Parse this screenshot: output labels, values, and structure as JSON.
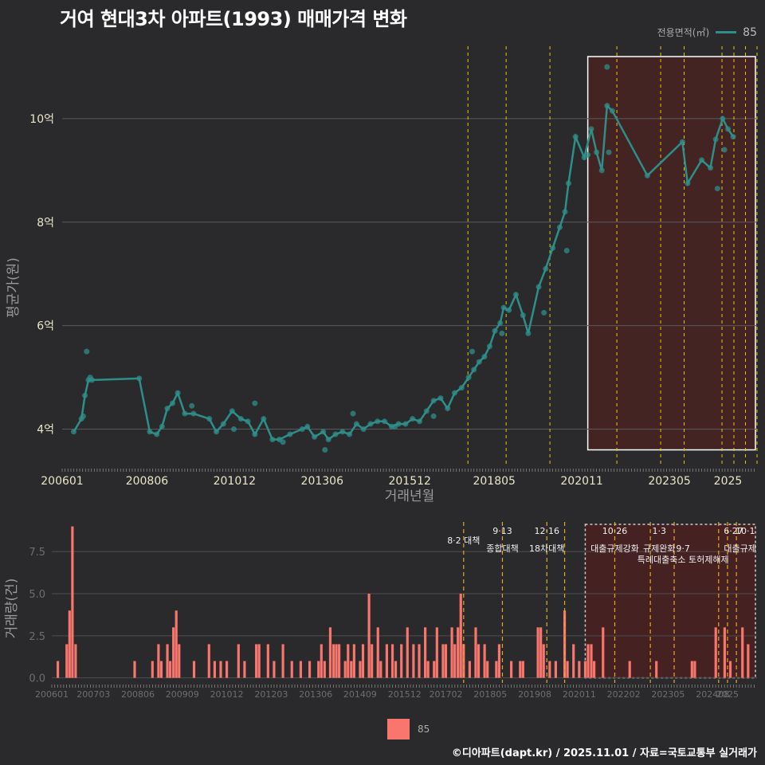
{
  "title": "거여 현대3차 아파트(1993) 매매가격 변화",
  "legend": {
    "title": "전용면적(㎡)",
    "series_label": "85"
  },
  "bottom_legend": {
    "label": "85"
  },
  "credit": "©디아파트(dapt.kr) / 2025.11.01 / 자료=국토교통부 실거래가",
  "colors": {
    "line": "#2e8f8a",
    "bar": "#f8766d",
    "highlight": "#5a1d1d",
    "policy": "#e6c619",
    "policy_bar": "#e8a81e"
  },
  "chart_data": [
    {
      "type": "line",
      "title": "거여 현대3차 아파트(1993) 매매가격 변화",
      "xlabel": "거래년월",
      "ylabel": "평균가(원)",
      "xlim": [
        2006.0,
        2025.83
      ],
      "ylim": [
        3.3,
        11.4
      ],
      "x_ticks": [
        {
          "x": 2006.0,
          "label": "200601"
        },
        {
          "x": 2008.42,
          "label": "200806"
        },
        {
          "x": 2010.92,
          "label": "201012"
        },
        {
          "x": 2013.42,
          "label": "201306"
        },
        {
          "x": 2015.92,
          "label": "201512"
        },
        {
          "x": 2018.33,
          "label": "201805"
        },
        {
          "x": 2020.83,
          "label": "202011"
        },
        {
          "x": 2023.33,
          "label": "202305"
        },
        {
          "x": 2025.0,
          "label": "2025"
        }
      ],
      "y_ticks": [
        {
          "y": 4,
          "label": "4억"
        },
        {
          "y": 6,
          "label": "6억"
        },
        {
          "y": 8,
          "label": "8억"
        },
        {
          "y": 10,
          "label": "10억"
        }
      ],
      "highlight_range": [
        2021.0,
        2025.83
      ],
      "policy_lines": [
        2017.58,
        2018.67,
        2019.92,
        2021.83,
        2023.08,
        2023.75,
        2024.83,
        2025.17,
        2025.5,
        2025.83
      ],
      "series": [
        {
          "name": "85",
          "points": [
            [
              2006.33,
              3.95
            ],
            [
              2006.55,
              4.2
            ],
            [
              2006.65,
              4.65
            ],
            [
              2006.75,
              4.95
            ],
            [
              2006.85,
              4.95
            ],
            [
              2008.2,
              4.98
            ],
            [
              2008.5,
              3.95
            ],
            [
              2008.7,
              3.9
            ],
            [
              2008.85,
              4.05
            ],
            [
              2009.0,
              4.4
            ],
            [
              2009.15,
              4.5
            ],
            [
              2009.3,
              4.7
            ],
            [
              2009.5,
              4.3
            ],
            [
              2009.75,
              4.3
            ],
            [
              2010.2,
              4.2
            ],
            [
              2010.4,
              3.95
            ],
            [
              2010.6,
              4.1
            ],
            [
              2010.85,
              4.35
            ],
            [
              2011.1,
              4.2
            ],
            [
              2011.3,
              4.15
            ],
            [
              2011.5,
              3.9
            ],
            [
              2011.75,
              4.2
            ],
            [
              2012.0,
              3.8
            ],
            [
              2012.2,
              3.8
            ],
            [
              2012.5,
              3.9
            ],
            [
              2012.85,
              4.0
            ],
            [
              2013.0,
              4.05
            ],
            [
              2013.2,
              3.85
            ],
            [
              2013.45,
              3.95
            ],
            [
              2013.6,
              3.8
            ],
            [
              2013.8,
              3.9
            ],
            [
              2014.0,
              3.95
            ],
            [
              2014.2,
              3.9
            ],
            [
              2014.4,
              4.1
            ],
            [
              2014.6,
              4.0
            ],
            [
              2014.8,
              4.1
            ],
            [
              2015.0,
              4.15
            ],
            [
              2015.2,
              4.15
            ],
            [
              2015.4,
              4.05
            ],
            [
              2015.6,
              4.1
            ],
            [
              2015.8,
              4.1
            ],
            [
              2016.0,
              4.2
            ],
            [
              2016.2,
              4.15
            ],
            [
              2016.4,
              4.35
            ],
            [
              2016.6,
              4.55
            ],
            [
              2016.8,
              4.6
            ],
            [
              2017.0,
              4.4
            ],
            [
              2017.2,
              4.7
            ],
            [
              2017.4,
              4.8
            ],
            [
              2017.6,
              5.0
            ],
            [
              2017.75,
              5.15
            ],
            [
              2017.9,
              5.3
            ],
            [
              2018.05,
              5.4
            ],
            [
              2018.2,
              5.6
            ],
            [
              2018.35,
              5.9
            ],
            [
              2018.5,
              6.05
            ],
            [
              2018.6,
              6.35
            ],
            [
              2018.75,
              6.3
            ],
            [
              2018.95,
              6.6
            ],
            [
              2019.15,
              6.2
            ],
            [
              2019.3,
              5.85
            ],
            [
              2019.6,
              6.75
            ],
            [
              2019.8,
              7.1
            ],
            [
              2020.0,
              7.5
            ],
            [
              2020.2,
              7.9
            ],
            [
              2020.35,
              8.2
            ],
            [
              2020.45,
              8.75
            ],
            [
              2020.65,
              9.65
            ],
            [
              2020.9,
              9.25
            ],
            [
              2021.1,
              9.8
            ],
            [
              2021.25,
              9.35
            ],
            [
              2021.4,
              9.0
            ],
            [
              2021.55,
              10.25
            ],
            [
              2021.7,
              10.15
            ],
            [
              2022.7,
              8.9
            ],
            [
              2023.7,
              9.55
            ],
            [
              2023.85,
              8.75
            ],
            [
              2024.25,
              9.2
            ],
            [
              2024.5,
              9.05
            ],
            [
              2024.65,
              9.6
            ],
            [
              2024.85,
              10.0
            ],
            [
              2025.0,
              9.8
            ],
            [
              2025.15,
              9.65
            ]
          ],
          "scatter": [
            [
              2006.7,
              5.5
            ],
            [
              2006.6,
              4.25
            ],
            [
              2006.8,
              5.0
            ],
            [
              2009.7,
              4.45
            ],
            [
              2010.9,
              4.0
            ],
            [
              2011.5,
              4.5
            ],
            [
              2012.3,
              3.75
            ],
            [
              2013.5,
              3.6
            ],
            [
              2014.3,
              4.3
            ],
            [
              2015.5,
              4.05
            ],
            [
              2016.6,
              4.25
            ],
            [
              2017.7,
              5.5
            ],
            [
              2018.55,
              5.85
            ],
            [
              2019.75,
              6.25
            ],
            [
              2020.4,
              7.45
            ],
            [
              2021.55,
              11.0
            ],
            [
              2021.6,
              9.35
            ],
            [
              2021.0,
              9.3
            ],
            [
              2024.7,
              8.65
            ],
            [
              2024.9,
              9.4
            ]
          ]
        }
      ]
    },
    {
      "type": "bar",
      "ylabel": "거래량(건)",
      "xlim": [
        2006.0,
        2025.83
      ],
      "ylim": [
        -0.3,
        9.5
      ],
      "y_ticks": [
        {
          "y": 0.0,
          "label": "0.0"
        },
        {
          "y": 2.5,
          "label": "2.5"
        },
        {
          "y": 5.0,
          "label": "5.0"
        },
        {
          "y": 7.5,
          "label": "7.5"
        }
      ],
      "x_ticks": [
        {
          "x": 2006.0,
          "label": "200601"
        },
        {
          "x": 2007.17,
          "label": "200703"
        },
        {
          "x": 2008.42,
          "label": "200806"
        },
        {
          "x": 2009.67,
          "label": "200909"
        },
        {
          "x": 2010.92,
          "label": "201012"
        },
        {
          "x": 2012.17,
          "label": "201203"
        },
        {
          "x": 2013.42,
          "label": "201306"
        },
        {
          "x": 2014.67,
          "label": "201409"
        },
        {
          "x": 2015.92,
          "label": "201512"
        },
        {
          "x": 2017.08,
          "label": "201702"
        },
        {
          "x": 2018.33,
          "label": "201805"
        },
        {
          "x": 2019.58,
          "label": "201908"
        },
        {
          "x": 2020.83,
          "label": "202011"
        },
        {
          "x": 2022.08,
          "label": "202202"
        },
        {
          "x": 2023.33,
          "label": "202305"
        },
        {
          "x": 2024.58,
          "label": "202408"
        },
        {
          "x": 2025.0,
          "label": "2025"
        }
      ],
      "highlight_range": [
        2021.0,
        2025.83
      ],
      "policy_lines": [
        2017.58,
        2018.67,
        2019.92,
        2020.42,
        2021.83,
        2022.83,
        2023.5,
        2024.75,
        2025.0,
        2025.25
      ],
      "policy_labels": [
        {
          "x": 2017.58,
          "row": 1,
          "text": "8·2 대책"
        },
        {
          "x": 2018.67,
          "row": 0,
          "text": "9·13"
        },
        {
          "x": 2018.67,
          "row": 2,
          "text": "종합대책"
        },
        {
          "x": 2019.92,
          "row": 0,
          "text": "12·16"
        },
        {
          "x": 2019.92,
          "row": 2,
          "text": "18차대책"
        },
        {
          "x": 2021.83,
          "row": 0,
          "text": "10·26"
        },
        {
          "x": 2021.83,
          "row": 2,
          "text": "대출규제강화"
        },
        {
          "x": 2023.08,
          "row": 0,
          "text": "1·3"
        },
        {
          "x": 2023.08,
          "row": 2,
          "text": "규제완화"
        },
        {
          "x": 2023.75,
          "row": 2,
          "text": "9·7"
        },
        {
          "x": 2023.75,
          "row": 3,
          "text": "특례대출축소 토허제해제"
        },
        {
          "x": 2025.17,
          "row": 0,
          "text": "6·27"
        },
        {
          "x": 2025.5,
          "row": 0,
          "text": "10·1"
        },
        {
          "x": 2025.35,
          "row": 2,
          "text": "대출규제"
        }
      ],
      "bars": [
        [
          2006.17,
          1
        ],
        [
          2006.42,
          2
        ],
        [
          2006.5,
          4
        ],
        [
          2006.58,
          9
        ],
        [
          2006.67,
          2
        ],
        [
          2008.33,
          1
        ],
        [
          2008.83,
          1
        ],
        [
          2009.0,
          2
        ],
        [
          2009.08,
          1
        ],
        [
          2009.25,
          2
        ],
        [
          2009.33,
          1
        ],
        [
          2009.42,
          3
        ],
        [
          2009.5,
          4
        ],
        [
          2009.58,
          2
        ],
        [
          2010.0,
          1
        ],
        [
          2010.42,
          2
        ],
        [
          2010.58,
          1
        ],
        [
          2010.75,
          1
        ],
        [
          2010.92,
          1
        ],
        [
          2011.25,
          2
        ],
        [
          2011.42,
          1
        ],
        [
          2011.75,
          2
        ],
        [
          2011.83,
          2
        ],
        [
          2012.08,
          2
        ],
        [
          2012.25,
          1
        ],
        [
          2012.5,
          2
        ],
        [
          2012.75,
          1
        ],
        [
          2013.0,
          1
        ],
        [
          2013.25,
          1
        ],
        [
          2013.5,
          1
        ],
        [
          2013.58,
          2
        ],
        [
          2013.67,
          1
        ],
        [
          2013.83,
          3
        ],
        [
          2013.92,
          2
        ],
        [
          2014.0,
          2
        ],
        [
          2014.08,
          2
        ],
        [
          2014.25,
          1
        ],
        [
          2014.33,
          2
        ],
        [
          2014.42,
          1
        ],
        [
          2014.5,
          2
        ],
        [
          2014.67,
          1
        ],
        [
          2014.75,
          2
        ],
        [
          2014.92,
          5
        ],
        [
          2015.0,
          2
        ],
        [
          2015.17,
          3
        ],
        [
          2015.25,
          1
        ],
        [
          2015.42,
          2
        ],
        [
          2015.58,
          2
        ],
        [
          2015.67,
          1
        ],
        [
          2015.83,
          2
        ],
        [
          2016.0,
          3
        ],
        [
          2016.17,
          2
        ],
        [
          2016.33,
          2
        ],
        [
          2016.5,
          3
        ],
        [
          2016.58,
          1
        ],
        [
          2016.75,
          1
        ],
        [
          2016.83,
          3
        ],
        [
          2017.0,
          2
        ],
        [
          2017.08,
          2
        ],
        [
          2017.25,
          3
        ],
        [
          2017.33,
          2
        ],
        [
          2017.42,
          3
        ],
        [
          2017.5,
          5
        ],
        [
          2017.58,
          2
        ],
        [
          2017.75,
          1
        ],
        [
          2017.92,
          3
        ],
        [
          2018.0,
          2
        ],
        [
          2018.17,
          2
        ],
        [
          2018.25,
          1
        ],
        [
          2018.5,
          1
        ],
        [
          2018.58,
          2
        ],
        [
          2018.92,
          1
        ],
        [
          2019.17,
          1
        ],
        [
          2019.25,
          1
        ],
        [
          2019.67,
          3
        ],
        [
          2019.75,
          3
        ],
        [
          2019.83,
          2
        ],
        [
          2020.0,
          1
        ],
        [
          2020.17,
          1
        ],
        [
          2020.42,
          4
        ],
        [
          2020.5,
          1
        ],
        [
          2020.67,
          2
        ],
        [
          2020.83,
          1
        ],
        [
          2021.0,
          1
        ],
        [
          2021.08,
          2
        ],
        [
          2021.17,
          2
        ],
        [
          2021.25,
          1
        ],
        [
          2021.5,
          3
        ],
        [
          2022.25,
          1
        ],
        [
          2023.0,
          1
        ],
        [
          2024.0,
          1
        ],
        [
          2024.08,
          1
        ],
        [
          2024.67,
          3
        ],
        [
          2024.92,
          3
        ],
        [
          2025.08,
          1
        ],
        [
          2025.42,
          3
        ],
        [
          2025.58,
          2
        ]
      ]
    }
  ]
}
